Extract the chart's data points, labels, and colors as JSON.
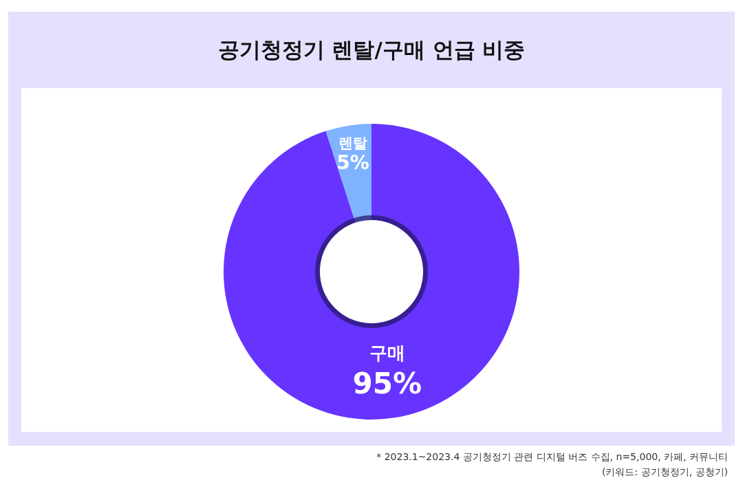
{
  "chart_data": {
    "type": "donut",
    "title": "공기청정기 렌탈/구매 언급 비중",
    "categories": [
      "구매",
      "렌탈"
    ],
    "values": [
      95,
      5
    ],
    "colors": [
      "#6633ff",
      "#80b3ff"
    ],
    "value_labels": [
      "95%",
      "5%"
    ],
    "legend": false,
    "annotations": [
      "* 2023.1~2023.4 공기청정기 관련 디지털 버즈 수집, n=5,000, 카페, 커뮤니티",
      "(키워드: 공기청정기, 공청기)"
    ]
  }
}
